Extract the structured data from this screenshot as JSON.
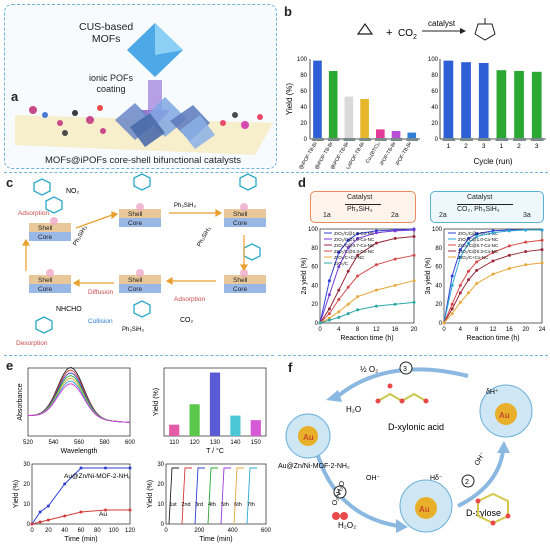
{
  "panels": {
    "a": "a",
    "b": "b",
    "c": "c",
    "d": "d",
    "e": "e",
    "f": "f"
  },
  "a": {
    "mof_label": "CUS-based\nMOFs",
    "coating_label": "ionic POFs\ncoating",
    "caption": "MOFs@iPOFs core-shell bifunctional catalysts"
  },
  "b": {
    "reaction": {
      "plus": "+",
      "co2": "CO",
      "co2_sub": "2",
      "catalyst": "catalyst"
    },
    "ylabel": "Yield (%)",
    "yticks": [
      "0",
      "20",
      "40",
      "60",
      "80",
      "100"
    ],
    "left": {
      "categories": [
        "Cu₃(BTC)₂@iPOF-TB-Br",
        "Cu₃(BTC)₂@iPOF-TB-Br",
        "Cu₃(BTC)₂@iPOF-TB-Br",
        "Cu₃(BTC)₂/iPOF-TB-Br",
        "Cu₃(BTC)₂",
        "iPOF-TB-Br",
        "iPOF-TB-Br"
      ],
      "values": [
        98,
        85,
        53,
        50,
        12,
        10,
        8
      ],
      "colors": [
        "#2f5fd6",
        "#2aa832",
        "#d9d9d9",
        "#e8b62a",
        "#e43a9a",
        "#b94fd6",
        "#2f7fd6"
      ]
    },
    "right": {
      "xlabel": "Cycle (run)",
      "categories": [
        "1",
        "2",
        "3",
        "1",
        "2",
        "3"
      ],
      "values": [
        98,
        96,
        95,
        86,
        85,
        84
      ],
      "colors": [
        "#2f5fd6",
        "#2f5fd6",
        "#2f5fd6",
        "#2aa832",
        "#2aa832",
        "#2aa832"
      ]
    }
  },
  "c": {
    "adsorption": "Adsorption",
    "desorption": "Desorption",
    "diffusion": "Diffusion",
    "collision": "Collision",
    "shell": "Shell",
    "core": "Core",
    "phsih3": "Ph₃SiH₃",
    "no2": "NO₂",
    "nhcho": "NHCHO",
    "co2": "CO₂"
  },
  "d": {
    "rxn1": {
      "sub": "1a",
      "prod": "2a",
      "catalyst": "Catalyst",
      "reagent": "Ph₃SiH₃"
    },
    "rxn2": {
      "sub": "2a",
      "prod": "3a",
      "catalyst": "Catalyst",
      "reagent": "CO₂, Ph₃SiH₃"
    },
    "left": {
      "ylabel": "2a yield (%)",
      "xlabel": "Reaction time (h)",
      "xticks": [
        "0",
        "4",
        "8",
        "12",
        "16",
        "20"
      ],
      "yticks": [
        "0",
        "20",
        "40",
        "60",
        "80",
        "100"
      ],
      "series": [
        {
          "name": "ZrO₂/C@1.5-Co-NC",
          "color": "#2f3fd6",
          "x": [
            0,
            2,
            4,
            6,
            8,
            12,
            16,
            20
          ],
          "y": [
            0,
            45,
            75,
            88,
            95,
            98,
            99,
            100
          ]
        },
        {
          "name": "ZrO₂/C@1.0-Co-NC",
          "color": "#7a3ad6",
          "x": [
            0,
            2,
            4,
            6,
            8,
            12,
            16,
            20
          ],
          "y": [
            0,
            30,
            60,
            80,
            90,
            96,
            98,
            99
          ]
        },
        {
          "name": "ZrO₂/C@0.7-Co-NC",
          "color": "#9a2a3a",
          "x": [
            0,
            2,
            4,
            6,
            8,
            12,
            16,
            20
          ],
          "y": [
            0,
            15,
            35,
            55,
            72,
            85,
            90,
            92
          ]
        },
        {
          "name": "ZrO₂/C@0.3-Co-NC",
          "color": "#d64a4a",
          "x": [
            0,
            2,
            4,
            6,
            8,
            12,
            16,
            20
          ],
          "y": [
            0,
            10,
            25,
            38,
            50,
            62,
            68,
            72
          ]
        },
        {
          "name": "ZrO₂/C+Co-NC",
          "color": "#e8a83a",
          "x": [
            0,
            2,
            4,
            6,
            8,
            12,
            16,
            20
          ],
          "y": [
            0,
            5,
            12,
            20,
            28,
            35,
            40,
            45
          ]
        },
        {
          "name": "ZrO₂/C",
          "color": "#2aa8a8",
          "x": [
            0,
            2,
            4,
            6,
            8,
            12,
            16,
            20
          ],
          "y": [
            0,
            3,
            6,
            10,
            14,
            18,
            20,
            22
          ]
        }
      ]
    },
    "right": {
      "ylabel": "3a yield (%)",
      "xlabel": "Reaction time (h)",
      "xticks": [
        "0",
        "4",
        "8",
        "12",
        "16",
        "20",
        "24"
      ],
      "yticks": [
        "0",
        "20",
        "40",
        "60",
        "80",
        "100"
      ],
      "series": [
        {
          "name": "ZrO₂/C@1.5-Co-NC",
          "color": "#2f3fd6",
          "x": [
            0,
            2,
            4,
            6,
            8,
            12,
            16,
            20,
            24
          ],
          "y": [
            0,
            50,
            78,
            90,
            95,
            98,
            99,
            99,
            99
          ]
        },
        {
          "name": "ZrO₂/C@1.0-Co-NC",
          "color": "#2aa8d6",
          "x": [
            0,
            2,
            4,
            6,
            8,
            12,
            16,
            20,
            24
          ],
          "y": [
            0,
            40,
            70,
            85,
            92,
            96,
            98,
            99,
            99
          ]
        },
        {
          "name": "ZrO₂/C@0.7-Co-NC",
          "color": "#d64a4a",
          "x": [
            0,
            2,
            4,
            6,
            8,
            12,
            16,
            20,
            24
          ],
          "y": [
            0,
            20,
            40,
            55,
            65,
            75,
            82,
            86,
            88
          ]
        },
        {
          "name": "ZrO₂/C@0.3-Co-NC",
          "color": "#9a2a3a",
          "x": [
            0,
            2,
            4,
            6,
            8,
            12,
            16,
            20,
            24
          ],
          "y": [
            0,
            15,
            32,
            46,
            56,
            66,
            72,
            76,
            78
          ]
        },
        {
          "name": "ZrO₂/C+Co-NC",
          "color": "#e8a83a",
          "x": [
            0,
            2,
            4,
            6,
            8,
            12,
            16,
            20,
            24
          ],
          "y": [
            0,
            10,
            22,
            32,
            42,
            52,
            58,
            62,
            64
          ]
        }
      ]
    }
  },
  "e": {
    "spectrum": {
      "ylabel": "Absorbance",
      "xlabel": "Wavelength",
      "xticks": [
        "520",
        "540",
        "560",
        "580",
        "600"
      ]
    },
    "temp": {
      "ylabel": "Yield (%)",
      "xlabel": "T / °C",
      "categories": [
        "110",
        "120",
        "130",
        "140",
        "150"
      ],
      "values": [
        5,
        14,
        28,
        9,
        7
      ],
      "colors": [
        "#e35aa6",
        "#5ac84a",
        "#5a5ad6",
        "#4ac8d6",
        "#d65ad6"
      ]
    },
    "time": {
      "ylabel": "Yield (%)",
      "xlabel": "Time (min)",
      "xticks": [
        "0",
        "20",
        "40",
        "60",
        "80",
        "100",
        "120"
      ],
      "yticks": [
        "0",
        "10",
        "20",
        "30"
      ],
      "series": [
        {
          "name": "Au@Zn/Ni-MOF-2-NH₂",
          "color": "#2f3fd6",
          "x": [
            0,
            10,
            20,
            40,
            60,
            90,
            120
          ],
          "y": [
            0,
            6,
            9,
            20,
            28,
            28,
            28
          ]
        },
        {
          "name": "Au",
          "color": "#d63a3a",
          "x": [
            0,
            10,
            20,
            40,
            60,
            90,
            120
          ],
          "y": [
            0,
            1,
            2,
            4,
            6,
            7,
            7
          ]
        }
      ]
    },
    "recycle": {
      "ylabel": "Yield (%)",
      "xlabel": "Time (min)",
      "xticks": [
        "0",
        "200",
        "400",
        "600"
      ],
      "yticks": [
        "0",
        "10",
        "20",
        "30"
      ],
      "runs": [
        "1st",
        "2nd",
        "3rd",
        "4th",
        "5th",
        "6th",
        "7th"
      ],
      "colors": [
        "#222222",
        "#d63a3a",
        "#2f3fd6",
        "#2aa832",
        "#9a3ad6",
        "#e8a83a",
        "#2aa8d6"
      ]
    }
  },
  "f": {
    "half_o2": "½ O₂",
    "h2o": "H₂O",
    "dxylonic": "D-xylonic acid",
    "particle": "Au@Zn/Ni-MOF-2-NH₂",
    "o2h2o": "O₂+H₂O",
    "oh_minus": "OH⁻",
    "h2o2": "H₂O₂",
    "dxylose": "D-xylose",
    "ohm": "OH⁻",
    "au": "Au",
    "step1": "1",
    "step2": "2",
    "step3": "3",
    "hdelta": "Hδ⁻",
    "dhplus": "δH⁺"
  }
}
